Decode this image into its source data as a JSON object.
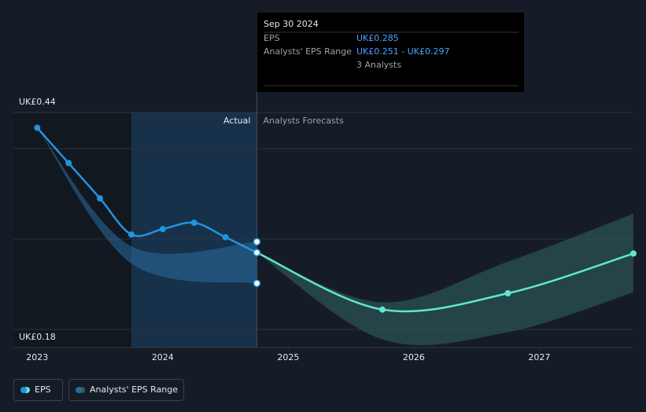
{
  "chart_data": {
    "type": "line",
    "xlim": [
      2022.81,
      2027.75
    ],
    "xticks": [
      2023,
      2024,
      2025,
      2026,
      2027
    ],
    "ylim": [
      0.18,
      0.44
    ],
    "yticks": [
      {
        "value": 0.18,
        "label": "UK£0.18"
      },
      {
        "value": 0.44,
        "label": "UK£0.44"
      }
    ],
    "grid_values": [
      0.2,
      0.3,
      0.4
    ],
    "actual_region": [
      2023.75,
      2024.75
    ],
    "region_labels": {
      "actual": "Actual",
      "forecast": "Analysts Forecasts"
    },
    "series": [
      {
        "name": "EPS",
        "color": "#2394df",
        "x": [
          2023,
          2023.25,
          2023.5,
          2023.75,
          2024,
          2024.25,
          2024.5,
          2024.75
        ],
        "values": [
          0.423,
          0.384,
          0.345,
          0.305,
          0.311,
          0.318,
          0.302,
          0.285
        ],
        "forecast": {
          "color": "#5ee7d0",
          "x": [
            2024.75,
            2025.75,
            2026.75,
            2027.75
          ],
          "values": [
            0.285,
            0.222,
            0.24,
            0.284
          ]
        }
      },
      {
        "name": "Analysts' EPS Range",
        "color": "#2a6b9e",
        "x": [
          2023,
          2023.75,
          2024.75
        ],
        "high": [
          0.423,
          0.292,
          0.297
        ],
        "low": [
          0.423,
          0.273,
          0.251
        ],
        "forecast": {
          "color": "#2f5f5e",
          "x": [
            2024.75,
            2025.75,
            2026.75,
            2027.75
          ],
          "high": [
            0.285,
            0.23,
            0.275,
            0.328
          ],
          "low": [
            0.285,
            0.189,
            0.197,
            0.241
          ]
        }
      }
    ],
    "tooltip": {
      "date": "Sep 30 2024",
      "rows": [
        {
          "label": "EPS",
          "value": "UK£0.285"
        },
        {
          "label": "Analysts' EPS Range",
          "value": "UK£0.251 - UK£0.297"
        }
      ],
      "note": "3 Analysts"
    }
  }
}
